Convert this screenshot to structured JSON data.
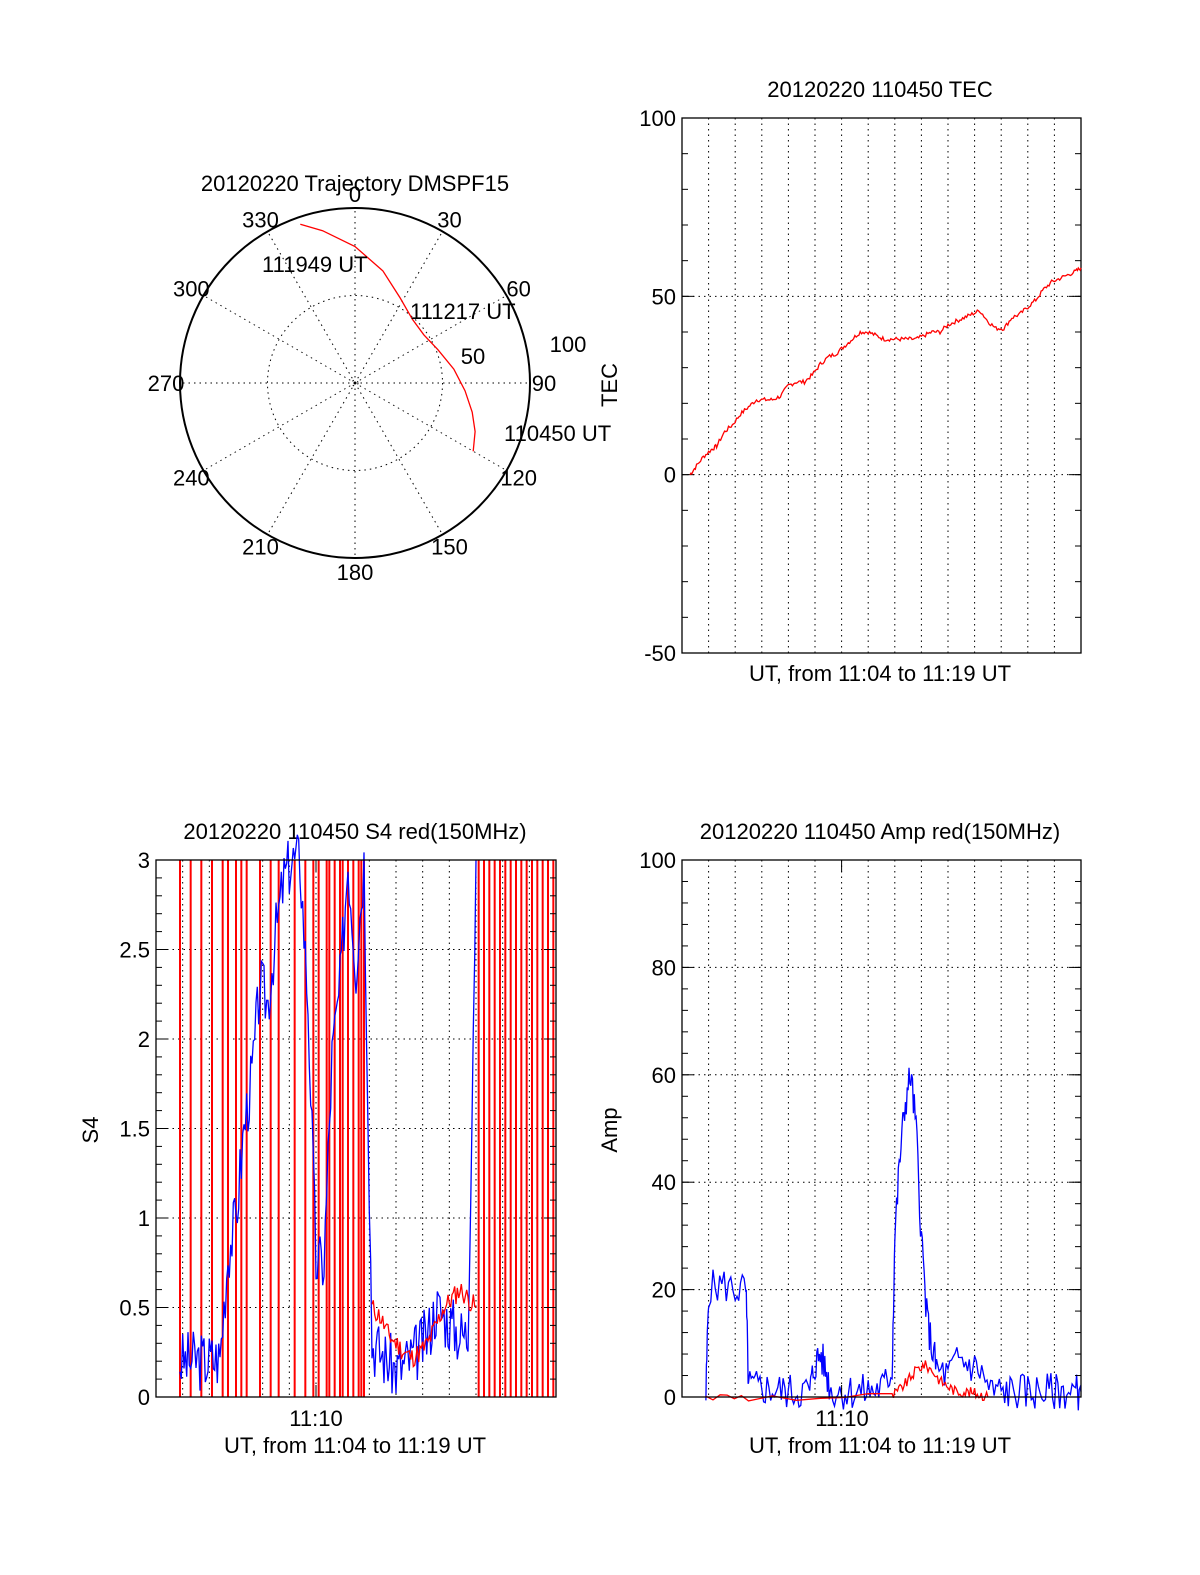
{
  "chart_data": [
    {
      "type": "polar",
      "title": "20120220 Trajectory DMSPF15",
      "azimuth_labels": [
        "0",
        "30",
        "60",
        "90",
        "120",
        "150",
        "180",
        "210",
        "240",
        "270",
        "300",
        "330"
      ],
      "radius_labels": [
        "50",
        "100"
      ],
      "series": [
        {
          "color": "#ff0000",
          "points": [
            {
              "azimuth": 120,
              "zenith": 78
            },
            {
              "azimuth": 112,
              "zenith": 74
            },
            {
              "azimuth": 104,
              "zenith": 69
            },
            {
              "azimuth": 94,
              "zenith": 63
            },
            {
              "azimuth": 82,
              "zenith": 57
            },
            {
              "azimuth": 68,
              "zenith": 51
            },
            {
              "azimuth": 55,
              "zenith": 48
            },
            {
              "azimuth": 42,
              "zenith": 49
            },
            {
              "azimuth": 28,
              "zenith": 55
            },
            {
              "azimuth": 14,
              "zenith": 66
            },
            {
              "azimuth": 0,
              "zenith": 78
            },
            {
              "azimuth": -12,
              "zenith": 89
            },
            {
              "azimuth": -19,
              "zenith": 96
            }
          ]
        }
      ],
      "annotations": [
        {
          "text": "111949 UT"
        },
        {
          "text": "111217 UT"
        },
        {
          "text": "110450 UT"
        }
      ]
    },
    {
      "type": "line",
      "title": "20120220 110450 TEC",
      "xlabel": "UT, from 11:04 to 11:19 UT",
      "ylabel": "TEC",
      "xlim": [
        0,
        15
      ],
      "ylim": [
        -50,
        100
      ],
      "yticks": [
        "-50",
        "0",
        "50",
        "100"
      ],
      "xtick_labels": [],
      "grid": true,
      "series": [
        {
          "color": "#ff0000",
          "x": [
            0.3,
            0.5,
            0.8,
            1.1,
            1.3,
            1.6,
            1.9,
            2.2,
            2.5,
            2.8,
            3.1,
            3.4,
            3.7,
            4.0,
            4.3,
            4.6,
            4.9,
            5.2,
            5.5,
            5.8,
            6.1,
            6.4,
            6.7,
            7.0,
            7.3,
            7.6,
            7.9,
            8.2,
            8.5,
            8.8,
            9.1,
            9.4,
            9.7,
            10.0,
            10.3,
            10.6,
            10.9,
            11.2,
            11.5,
            11.8,
            12.1,
            12.4,
            12.7,
            13.0,
            13.3,
            13.6,
            13.9,
            14.2,
            14.5,
            14.8,
            15.0
          ],
          "y": [
            0,
            2,
            5,
            7,
            8,
            12,
            14,
            17,
            19,
            21,
            21,
            21,
            22,
            25,
            26,
            26,
            28,
            31,
            33,
            34,
            36,
            38,
            40,
            40,
            39,
            38,
            38,
            38,
            38,
            38,
            39,
            40,
            40,
            42,
            43,
            44,
            45,
            46,
            43,
            41,
            41,
            44,
            45,
            47,
            49,
            52,
            54,
            55,
            56,
            57,
            58
          ]
        }
      ]
    },
    {
      "type": "line",
      "title": "20120220 110450 S4 red(150MHz)",
      "xlabel": "UT, from 11:04 to 11:19 UT",
      "ylabel": "S4",
      "xlim": [
        0,
        15
      ],
      "ylim": [
        0,
        3
      ],
      "yticks": [
        "0",
        "0.5",
        "1",
        "1.5",
        "2",
        "2.5",
        "3"
      ],
      "xtick_labels": [
        "11:10"
      ],
      "grid": true,
      "series": [
        {
          "color": "#ff0000",
          "name": "",
          "x": [
            8.1,
            8.4,
            8.7,
            9.0,
            9.3,
            9.6,
            9.9,
            10.2,
            10.5,
            10.8,
            11.1,
            11.4,
            11.7,
            12.0
          ],
          "y": [
            0.5,
            0.45,
            0.35,
            0.3,
            0.25,
            0.22,
            0.25,
            0.3,
            0.4,
            0.5,
            0.55,
            0.6,
            0.55,
            0.5
          ]
        },
        {
          "color": "#0000ff",
          "name": "",
          "x": [
            0.9,
            1.2,
            1.5,
            1.8,
            2.1,
            2.4,
            2.7,
            3.0,
            3.3,
            3.6,
            3.9,
            4.2,
            4.5,
            4.8,
            5.1,
            5.4,
            5.7,
            6.0,
            6.3,
            6.6,
            6.9,
            7.2,
            7.5,
            7.8,
            8.1,
            8.4,
            8.7,
            9.0,
            9.3,
            9.6,
            9.9,
            10.2,
            10.5,
            10.8,
            11.1,
            11.4,
            11.7,
            12.0
          ],
          "y": [
            0.2,
            0.2,
            0.21,
            0.2,
            0.21,
            0.22,
            0.8,
            1.0,
            1.5,
            1.8,
            2.3,
            2.2,
            2.6,
            2.9,
            3.0,
            3.0,
            2.2,
            0.75,
            0.75,
            1.9,
            2.3,
            3.0,
            2.4,
            3.0,
            0.3,
            0.25,
            0.2,
            0.15,
            0.18,
            0.22,
            0.28,
            0.35,
            0.5,
            0.45,
            0.4,
            0.35,
            0.35,
            3.0
          ]
        }
      ],
      "red_spikes_x": [
        0.9,
        1.3,
        1.7,
        2.1,
        2.5,
        2.7,
        3.0,
        3.2,
        3.4,
        3.9,
        4.3,
        4.6,
        5.2,
        5.6,
        5.9,
        6.1,
        6.4,
        6.5,
        6.7,
        6.9,
        7.0,
        7.2,
        7.4,
        7.6,
        7.7,
        7.8,
        12.1,
        12.3,
        12.5,
        12.7,
        12.9,
        13.1,
        13.3,
        13.5,
        13.7,
        13.9,
        14.1,
        14.3,
        14.5,
        14.7,
        14.9
      ]
    },
    {
      "type": "line",
      "title": "20120220 110450 Amp red(150MHz)",
      "xlabel": "UT, from 11:04 to 11:19 UT",
      "ylabel": "Amp",
      "xlim": [
        0,
        15
      ],
      "ylim": [
        0,
        100
      ],
      "yticks": [
        "0",
        "20",
        "40",
        "60",
        "80",
        "100"
      ],
      "xtick_labels": [
        "11:10"
      ],
      "grid": true,
      "series": [
        {
          "color": "#0000ff",
          "name": "",
          "x": [
            0.9,
            1.0,
            1.5,
            2.0,
            2.4,
            2.5,
            2.8,
            3.2,
            3.6,
            4.0,
            4.4,
            4.8,
            5.0,
            5.2,
            5.4,
            5.6,
            6.0,
            6.4,
            6.8,
            7.2,
            7.6,
            7.9,
            8.0,
            8.2,
            8.4,
            8.6,
            8.8,
            9.0,
            9.2,
            9.4,
            9.6,
            10.0,
            10.4,
            10.8,
            11.2,
            11.6,
            12.0,
            12.4,
            12.8,
            13.2,
            13.6,
            14.0,
            14.4,
            14.8,
            15.0
          ],
          "y": [
            0,
            20,
            21,
            20,
            20,
            2,
            1.8,
            1.5,
            1.2,
            1.0,
            1.0,
            1.2,
            6,
            8,
            5,
            1.2,
            1.0,
            1.0,
            1.0,
            1.2,
            2,
            5,
            30,
            45,
            55,
            60,
            50,
            30,
            15,
            9,
            5,
            4,
            7,
            6,
            5,
            1,
            1,
            1,
            1,
            1,
            1,
            1,
            1,
            1,
            1
          ]
        },
        {
          "color": "#ff0000",
          "name": "",
          "x": [
            0.9,
            2.5,
            7.9,
            8.2,
            8.5,
            8.8,
            9.1,
            9.4,
            9.7,
            10.0,
            10.3,
            10.6,
            10.9,
            11.2,
            11.5
          ],
          "y": [
            0,
            0,
            0,
            1.5,
            3,
            5,
            6,
            5,
            3,
            2,
            1,
            1,
            0.8,
            0.5,
            0
          ]
        }
      ]
    }
  ]
}
